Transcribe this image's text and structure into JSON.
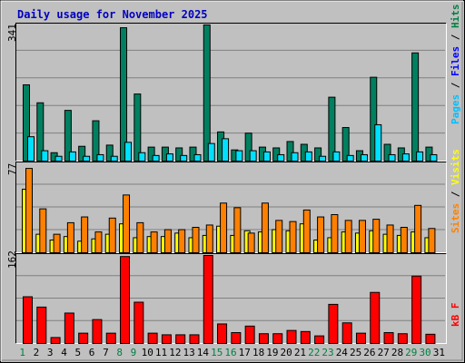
{
  "chart_data": [
    {
      "panel": "hits-files-pages",
      "type": "bar",
      "title": "Daily usage for November 2025",
      "x": [
        1,
        2,
        3,
        4,
        5,
        6,
        7,
        8,
        9,
        10,
        11,
        12,
        13,
        14,
        15,
        16,
        17,
        18,
        19,
        20,
        21,
        22,
        23,
        24,
        25,
        26,
        27,
        28,
        29,
        30,
        31
      ],
      "day_label_colors": [
        "#008040",
        "#000000",
        "#000000",
        "#000000",
        "#000000",
        "#000000",
        "#000000",
        "#008040",
        "#008040",
        "#000000",
        "#000000",
        "#000000",
        "#000000",
        "#000000",
        "#008040",
        "#008040",
        "#000000",
        "#000000",
        "#000000",
        "#000000",
        "#000000",
        "#008040",
        "#008040",
        "#000000",
        "#000000",
        "#000000",
        "#000000",
        "#000000",
        "#008040",
        "#008040",
        "#000000"
      ],
      "y_max_label": "341",
      "y_max": 341,
      "axis_label_parts": [
        {
          "text": "Pages",
          "color": "#00c0ff"
        },
        {
          "text": " / ",
          "color": "#000000"
        },
        {
          "text": "Files",
          "color": "#0000ff"
        },
        {
          "text": " / ",
          "color": "#000000"
        },
        {
          "text": "Hits",
          "color": "#008040"
        }
      ],
      "series": [
        {
          "name": "Hits",
          "color": "#008060",
          "values": [
            191,
            146,
            21,
            127,
            37,
            101,
            40,
            334,
            168,
            35,
            35,
            33,
            35,
            341,
            73,
            28,
            70,
            35,
            33,
            49,
            42,
            33,
            160,
            84,
            26,
            210,
            42,
            33,
            271,
            35,
            0
          ]
        },
        {
          "name": "Files",
          "color": "#0000ff",
          "values": [
            0,
            0,
            0,
            0,
            0,
            0,
            0,
            0,
            0,
            0,
            0,
            0,
            0,
            0,
            0,
            0,
            0,
            0,
            0,
            0,
            0,
            0,
            0,
            0,
            0,
            0,
            0,
            0,
            0,
            0,
            0
          ]
        },
        {
          "name": "Pages",
          "color": "#00e0ff",
          "values": [
            61,
            26,
            12,
            23,
            12,
            16,
            12,
            47,
            21,
            14,
            18,
            14,
            16,
            44,
            56,
            26,
            26,
            23,
            16,
            21,
            23,
            12,
            23,
            14,
            16,
            91,
            16,
            18,
            23,
            16,
            0
          ]
        }
      ]
    },
    {
      "panel": "sites-visits",
      "type": "bar",
      "x": [
        1,
        2,
        3,
        4,
        5,
        6,
        7,
        8,
        9,
        10,
        11,
        12,
        13,
        14,
        15,
        16,
        17,
        18,
        19,
        20,
        21,
        22,
        23,
        24,
        25,
        26,
        27,
        28,
        29,
        30,
        31
      ],
      "y_max_label": "77",
      "y_max": 77,
      "axis_label_parts": [
        {
          "text": "Sites",
          "color": "#ff8000"
        },
        {
          "text": " / ",
          "color": "#000000"
        },
        {
          "text": "Visits",
          "color": "#ffff00"
        }
      ],
      "series": [
        {
          "name": "Visits",
          "color": "#ffff00",
          "values": [
            55,
            16,
            11,
            14,
            10,
            12,
            16,
            25,
            13,
            14,
            14,
            17,
            13,
            15,
            23,
            15,
            19,
            18,
            20,
            19,
            25,
            11,
            13,
            18,
            17,
            19,
            16,
            15,
            18,
            13,
            0
          ]
        },
        {
          "name": "Sites",
          "color": "#ff8000",
          "values": [
            73,
            38,
            16,
            26,
            31,
            18,
            30,
            50,
            26,
            18,
            20,
            20,
            22,
            24,
            43,
            39,
            17,
            43,
            28,
            27,
            37,
            31,
            33,
            28,
            28,
            29,
            24,
            22,
            41,
            21,
            0
          ]
        }
      ]
    },
    {
      "panel": "kb",
      "type": "bar",
      "x": [
        1,
        2,
        3,
        4,
        5,
        6,
        7,
        8,
        9,
        10,
        11,
        12,
        13,
        14,
        15,
        16,
        17,
        18,
        19,
        20,
        21,
        22,
        23,
        24,
        25,
        26,
        27,
        28,
        29,
        30,
        31
      ],
      "y_max_label": "162",
      "y_max": 162,
      "axis_label_parts": [
        {
          "text": "kB F",
          "color": "#ff0000"
        }
      ],
      "series": [
        {
          "name": "kB F",
          "color": "#ff0000",
          "values": [
            86,
            67,
            11,
            56,
            19,
            44,
            19,
            160,
            76,
            19,
            16,
            16,
            16,
            162,
            36,
            20,
            32,
            18,
            18,
            24,
            22,
            14,
            72,
            38,
            19,
            94,
            20,
            18,
            124,
            17,
            0
          ]
        }
      ]
    }
  ]
}
